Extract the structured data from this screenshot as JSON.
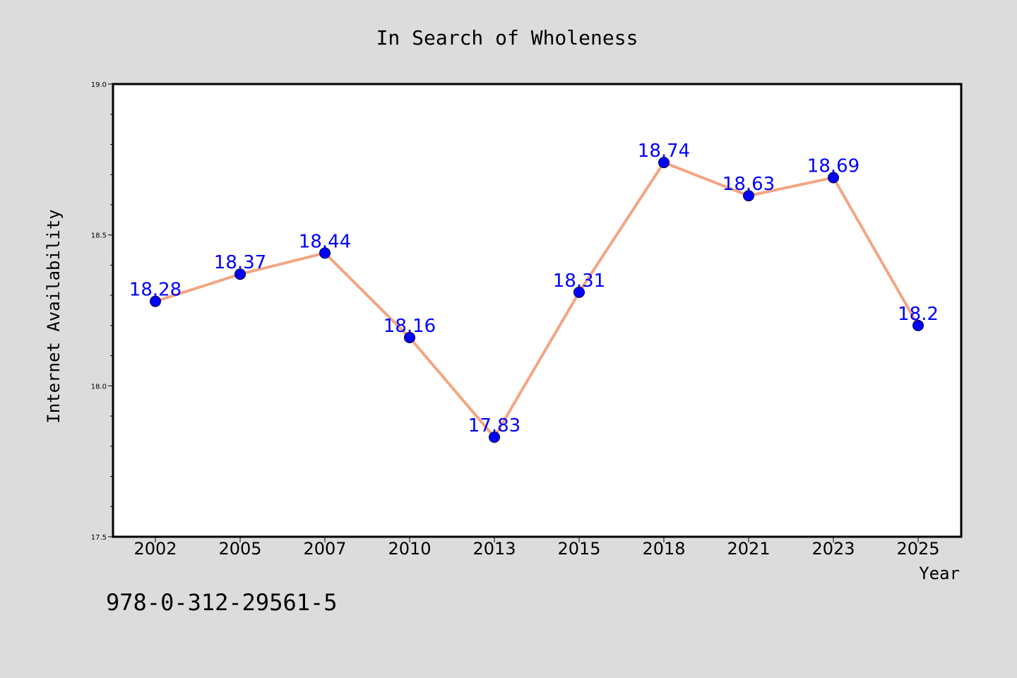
{
  "chart_data": {
    "type": "line",
    "title": "In Search of Wholeness",
    "xlabel": "Year",
    "ylabel": "Internet Availability",
    "categories": [
      "2002",
      "2005",
      "2007",
      "2010",
      "2013",
      "2015",
      "2018",
      "2021",
      "2023",
      "2025"
    ],
    "series": [
      {
        "values": [
          18.28,
          18.37,
          18.44,
          18.16,
          17.83,
          18.31,
          18.74,
          18.63,
          18.69,
          18.2
        ],
        "labels": [
          "18.28",
          "18.37",
          "18.44",
          "18.16",
          "17.83",
          "18.31",
          "18.74",
          "18.63",
          "18.69",
          "18.2"
        ]
      }
    ],
    "ylim": [
      17.5,
      19.0
    ],
    "yticks": [
      17.5,
      18.0,
      18.5,
      19.0
    ],
    "ytick_labels": [
      "17.5",
      "18.0",
      "18.5",
      "19.0"
    ],
    "grid": false,
    "colors": {
      "line": "#f4a582",
      "marker": "#0000ff",
      "data_label": "#0000ff",
      "background": "#dcdcdc",
      "plot_background": "#ffffff"
    }
  },
  "footer": {
    "isbn": "978-0-312-29561-5"
  }
}
